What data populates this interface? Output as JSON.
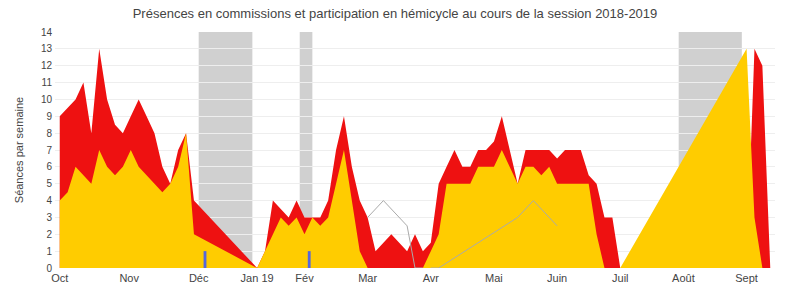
{
  "chart_data": {
    "type": "area",
    "title": "Présences en commissions et participation en hémicycle au cours de la session 2018-2019",
    "ylabel": "Séances par semaine",
    "xlim": [
      -0.3,
      45.3
    ],
    "xticks": [
      {
        "value": 0,
        "label": "Oct"
      },
      {
        "value": 4.4,
        "label": "Nov"
      },
      {
        "value": 8.8,
        "label": "Déc"
      },
      {
        "value": 12.5,
        "label": "Jan 19"
      },
      {
        "value": 15.5,
        "label": "Fév"
      },
      {
        "value": 19.5,
        "label": "Mar"
      },
      {
        "value": 23.5,
        "label": "Avr"
      },
      {
        "value": 27.5,
        "label": "Mai"
      },
      {
        "value": 31.5,
        "label": "Juin"
      },
      {
        "value": 35.5,
        "label": "Juil"
      },
      {
        "value": 39.5,
        "label": "Août"
      },
      {
        "value": 43.5,
        "label": "Sept"
      }
    ],
    "ylim": [
      0,
      14
    ],
    "yticks": [
      0,
      1,
      2,
      3,
      4,
      5,
      6,
      7,
      8,
      9,
      10,
      11,
      12,
      13,
      14
    ],
    "grid": true,
    "bands": [
      [
        8.8,
        12.2
      ],
      [
        15.2,
        16.0
      ],
      [
        39.2,
        43.2
      ]
    ],
    "band_color": "#aaaaaa",
    "series": [
      {
        "type": "area",
        "color": "#ee1111",
        "x": [
          0,
          0.5,
          1,
          1.5,
          2,
          2.5,
          3,
          3.5,
          4,
          4.5,
          5,
          5.5,
          6,
          6.5,
          7,
          7.5,
          8,
          8.5,
          12.5,
          13,
          13.5,
          14,
          14.5,
          15,
          15.5,
          16,
          16.5,
          17,
          17.5,
          18,
          18.5,
          19,
          19.5,
          20,
          20.5,
          21,
          21.5,
          22,
          22.5,
          23,
          23.5,
          24,
          24.5,
          25,
          25.5,
          26,
          26.5,
          27,
          27.5,
          28,
          28.5,
          29,
          29.5,
          30,
          30.5,
          31,
          31.5,
          32,
          32.5,
          33,
          33.5,
          34,
          34.5,
          35,
          35.5,
          43.5,
          44,
          44.5,
          45
        ],
        "values": [
          9,
          9.5,
          10,
          11,
          8,
          13,
          10,
          8.5,
          8,
          9,
          10,
          9,
          8,
          6,
          5,
          7,
          8,
          4,
          0,
          1,
          4,
          3.5,
          3,
          4,
          3,
          3,
          3,
          4,
          7,
          9,
          6,
          4,
          3,
          1,
          1.5,
          2,
          1.5,
          1,
          2,
          1,
          1.5,
          5,
          6,
          7,
          6,
          6,
          7,
          7,
          7.5,
          9,
          7,
          5,
          7,
          7,
          7,
          7,
          6.5,
          7,
          7,
          7,
          5.5,
          5,
          3,
          3,
          0,
          0,
          13,
          12,
          0
        ]
      },
      {
        "type": "area",
        "color": "#ffcc00",
        "x": [
          0,
          0.5,
          1,
          1.5,
          2,
          2.5,
          3,
          3.5,
          4,
          4.5,
          5,
          5.5,
          6,
          6.5,
          7,
          7.5,
          8,
          8.5,
          12.5,
          13,
          13.5,
          14,
          14.5,
          15,
          15.5,
          16,
          16.5,
          17,
          17.5,
          18,
          18.5,
          19,
          19.5,
          20,
          20.5,
          21,
          23,
          23.5,
          24,
          24.5,
          25,
          25.5,
          26,
          26.5,
          27,
          27.5,
          28,
          28.5,
          29,
          29.5,
          30,
          30.5,
          31,
          31.5,
          32,
          32.5,
          33,
          33.5,
          34,
          34.5,
          35,
          35.5,
          43.5,
          44,
          44.5,
          45
        ],
        "values": [
          4,
          4.5,
          6,
          5.5,
          5,
          7,
          6,
          5.5,
          6,
          7,
          6,
          5.5,
          5,
          4.5,
          5,
          6,
          8,
          2,
          0,
          1,
          2,
          3,
          2.5,
          3,
          2,
          3,
          2.5,
          3,
          5,
          7,
          4,
          1,
          0,
          0,
          0,
          0,
          0,
          1,
          2,
          5,
          5,
          5,
          5,
          6,
          6,
          6,
          7,
          6,
          5,
          6,
          6,
          5.5,
          6,
          5,
          5,
          5,
          5,
          5,
          2,
          0,
          0,
          0,
          13,
          3,
          0,
          0
        ]
      },
      {
        "type": "line",
        "color": "#aaaaaa",
        "x": [
          19.5,
          20,
          20.5,
          21,
          21.5,
          22,
          22.5,
          23
        ],
        "values": [
          3,
          3.5,
          4,
          3.5,
          3,
          2.5,
          0,
          0
        ]
      },
      {
        "type": "line",
        "color": "#aaaaaa",
        "x": [
          23.5,
          24,
          29,
          29.5,
          30,
          30.5,
          31,
          31.5
        ],
        "values": [
          0,
          0,
          3,
          3.5,
          4,
          3.5,
          3,
          2.5
        ]
      },
      {
        "type": "bar",
        "color": "#5566dd",
        "x": [
          9.2,
          15.8
        ],
        "values": [
          1.0,
          1.0
        ]
      }
    ]
  }
}
